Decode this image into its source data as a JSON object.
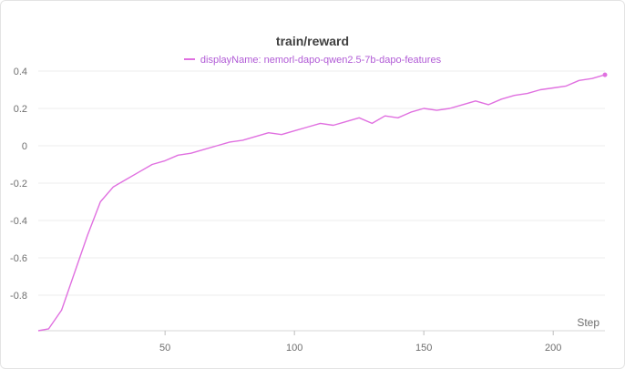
{
  "chart_data": {
    "type": "line",
    "title": "train/reward",
    "xlabel": "Step",
    "ylabel": "",
    "xlim": [
      1,
      220
    ],
    "ylim": [
      -0.99,
      0.4
    ],
    "xticks": [
      50,
      100,
      150,
      200
    ],
    "yticks": [
      -0.8,
      -0.6,
      -0.4,
      -0.2,
      0,
      0.2,
      0.4
    ],
    "ytick_labels": [
      "-0.8",
      "-0.6",
      "-0.4",
      "-0.2",
      "0",
      "0.2",
      "0.4"
    ],
    "grid": true,
    "legend_position": "top",
    "series": [
      {
        "name": "displayName: nemorl-dapo-qwen2.5-7b-dapo-features",
        "color": "#e070e0",
        "x": [
          1,
          5,
          10,
          15,
          20,
          25,
          30,
          35,
          40,
          45,
          50,
          55,
          60,
          65,
          70,
          75,
          80,
          85,
          90,
          95,
          100,
          105,
          110,
          115,
          120,
          125,
          130,
          135,
          140,
          145,
          150,
          155,
          160,
          165,
          170,
          175,
          180,
          185,
          190,
          195,
          200,
          205,
          210,
          215,
          220
        ],
        "y": [
          -0.99,
          -0.98,
          -0.88,
          -0.68,
          -0.48,
          -0.3,
          -0.22,
          -0.18,
          -0.14,
          -0.1,
          -0.08,
          -0.05,
          -0.04,
          -0.02,
          0.0,
          0.02,
          0.03,
          0.05,
          0.07,
          0.06,
          0.08,
          0.1,
          0.12,
          0.11,
          0.13,
          0.15,
          0.12,
          0.16,
          0.15,
          0.18,
          0.2,
          0.19,
          0.2,
          0.22,
          0.24,
          0.22,
          0.25,
          0.27,
          0.28,
          0.3,
          0.31,
          0.32,
          0.35,
          0.36,
          0.38
        ]
      }
    ]
  }
}
